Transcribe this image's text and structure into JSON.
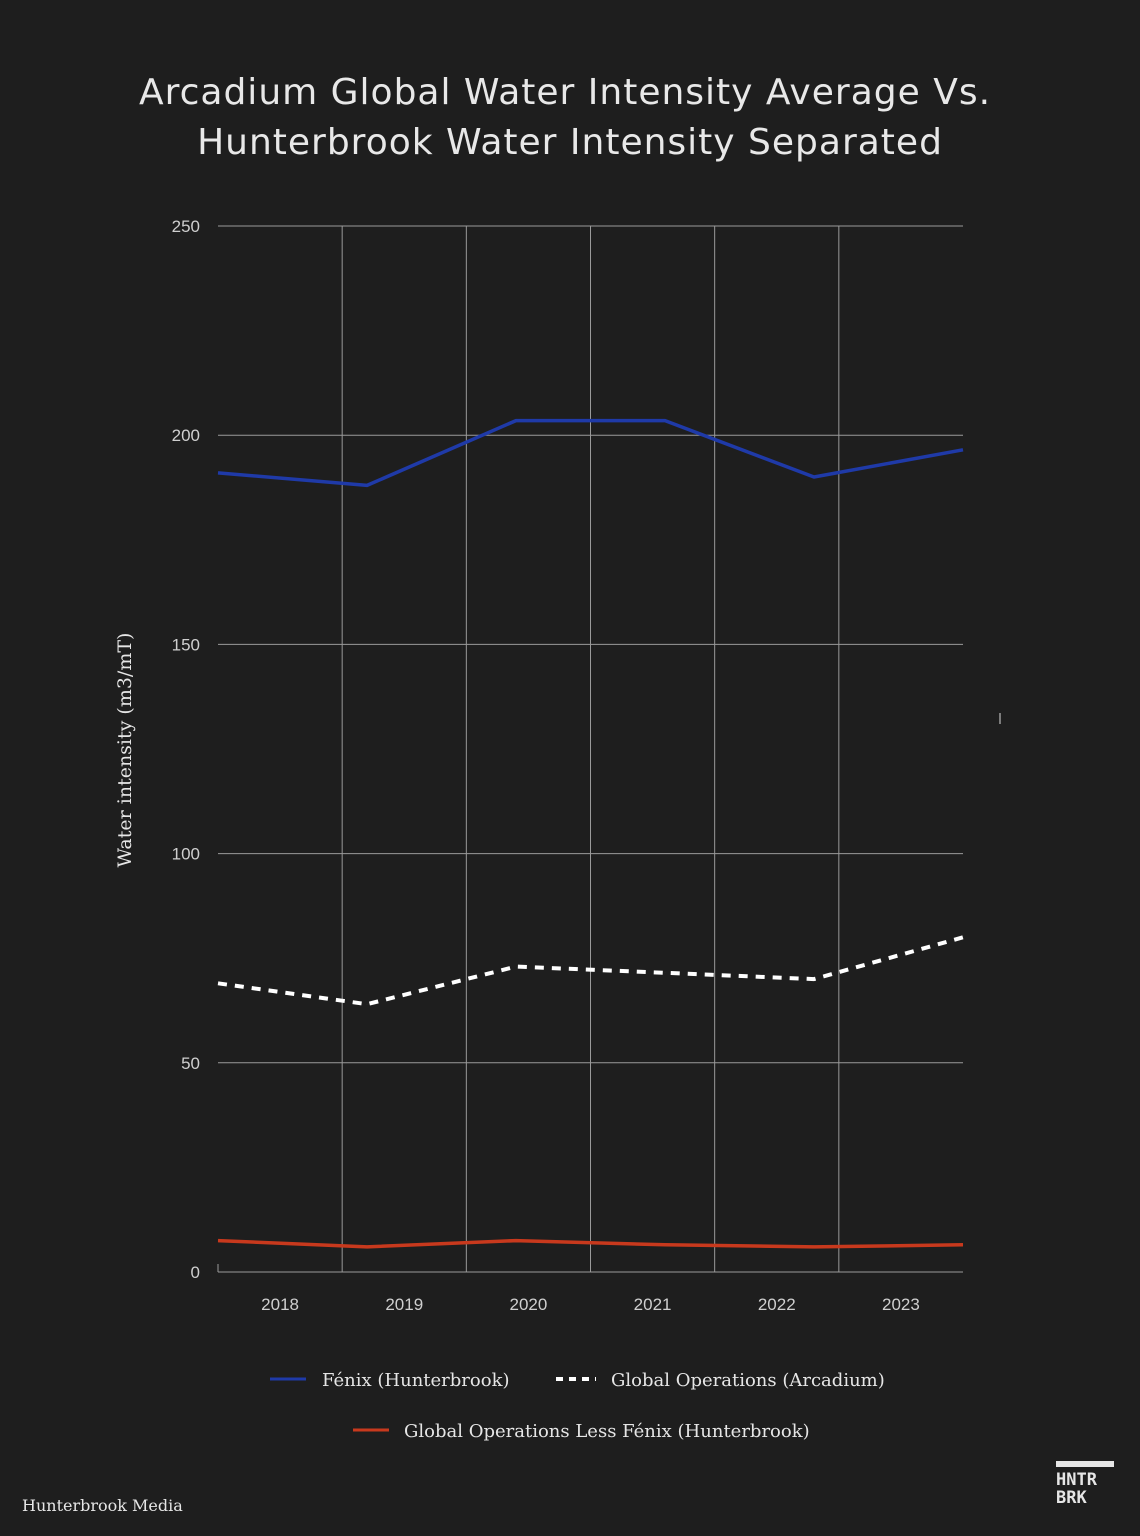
{
  "chart_data": {
    "type": "line",
    "title": [
      "Arcadium Global Water Intensity Average Vs.",
      "Hunterbrook Water Intensity Separated"
    ],
    "xlabel": "",
    "ylabel": "Water intensity (m3/mT)",
    "categories": [
      "2018",
      "2019",
      "2020",
      "2021",
      "2022",
      "2023"
    ],
    "x": [
      2017.5,
      2018.7,
      2019.9,
      2021.1,
      2022.3,
      2023.5
    ],
    "ylim": [
      0,
      250
    ],
    "yticks": [
      0,
      50,
      100,
      150,
      200,
      250
    ],
    "grid": true,
    "series": [
      {
        "name": "Fénix (Hunterbrook)",
        "color": "#1f3aa8",
        "style": "solid",
        "values": [
          191,
          188,
          203.5,
          203.5,
          190,
          196.5
        ]
      },
      {
        "name": "Global Operations (Arcadium)",
        "color": "#ffffff",
        "style": "dashed",
        "values": [
          69,
          64,
          73,
          71.5,
          70,
          80
        ]
      },
      {
        "name": "Global Operations Less Fénix (Hunterbrook)",
        "color": "#c8391d",
        "style": "solid",
        "values": [
          7.5,
          6,
          7.5,
          6.5,
          6,
          6.5
        ]
      }
    ],
    "legend_position": "bottom"
  },
  "footer": {
    "source": "Hunterbrook Media",
    "logo_line1": "HNTR",
    "logo_line2": "BRK"
  },
  "colors": {
    "background": "#1e1e1e",
    "grid": "#9a9a9a",
    "text": "#e6e6e6"
  }
}
